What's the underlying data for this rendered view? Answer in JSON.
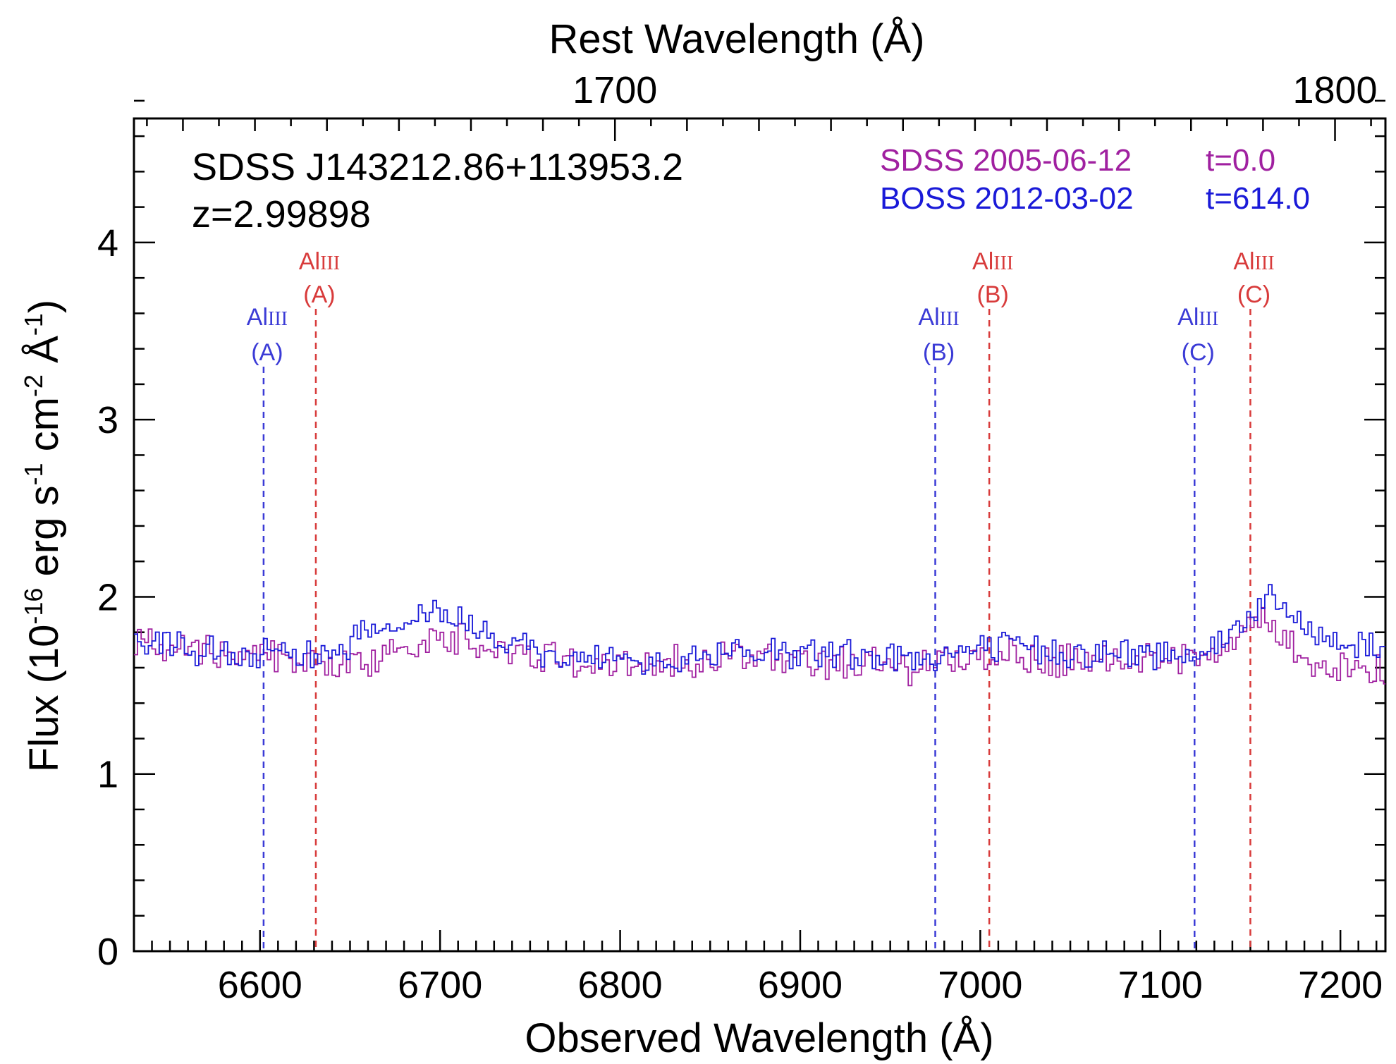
{
  "chart_data": {
    "type": "line",
    "object_name": "SDSS J143212.86+113953.2",
    "redshift_label": "z=2.99898",
    "xlabel": "Observed Wavelength (Å)",
    "x2label": "Rest Wavelength (Å)",
    "ylabel": "Flux (10",
    "ylabel_exp1": "-16",
    "ylabel_mid1": " erg s",
    "ylabel_exp2": "-1",
    "ylabel_mid2": " cm",
    "ylabel_exp3": "-2",
    "ylabel_mid3": " Å",
    "ylabel_exp4": "-1",
    "ylabel_end": ")",
    "xlim": [
      6530,
      7225
    ],
    "ylim": [
      0,
      4.7
    ],
    "rest_lim": [
      1633.2,
      1807.0
    ],
    "x_ticks": [
      6600,
      6700,
      6800,
      6900,
      7000,
      7100,
      7200
    ],
    "y_ticks": [
      0,
      1,
      2,
      3,
      4
    ],
    "top_ticks": [
      1700,
      1800
    ],
    "legend_placement": "top-right",
    "legend": [
      {
        "survey": "SDSS",
        "date": "2005-06-12",
        "epoch": "t=0.0",
        "color": "#a020a0"
      },
      {
        "survey": "BOSS",
        "date": "2012-03-02",
        "epoch": "t=614.0",
        "color": "#1a1ad8"
      }
    ],
    "series": [
      {
        "name": "SDSS",
        "color": "#a020a0",
        "x": [
          6530,
          6550,
          6570,
          6590,
          6610,
          6630,
          6650,
          6670,
          6690,
          6710,
          6730,
          6750,
          6770,
          6790,
          6810,
          6830,
          6850,
          6870,
          6890,
          6910,
          6930,
          6950,
          6960,
          6970,
          6990,
          7010,
          7030,
          7050,
          7070,
          7090,
          7110,
          7130,
          7145,
          7155,
          7165,
          7175,
          7185,
          7200,
          7225
        ],
        "y": [
          1.76,
          1.74,
          1.7,
          1.68,
          1.66,
          1.64,
          1.62,
          1.68,
          1.74,
          1.78,
          1.72,
          1.68,
          1.64,
          1.62,
          1.61,
          1.63,
          1.65,
          1.66,
          1.65,
          1.64,
          1.63,
          1.6,
          1.58,
          1.64,
          1.66,
          1.68,
          1.66,
          1.65,
          1.64,
          1.65,
          1.66,
          1.69,
          1.8,
          1.9,
          1.8,
          1.68,
          1.62,
          1.6,
          1.58
        ]
      },
      {
        "name": "BOSS",
        "color": "#1a1ad8",
        "x": [
          6530,
          6550,
          6570,
          6590,
          6610,
          6630,
          6650,
          6670,
          6690,
          6700,
          6710,
          6730,
          6750,
          6770,
          6790,
          6810,
          6830,
          6850,
          6870,
          6890,
          6910,
          6930,
          6950,
          6970,
          6990,
          7010,
          7030,
          7050,
          7070,
          7090,
          7110,
          7130,
          7145,
          7155,
          7165,
          7175,
          7185,
          7200,
          7225
        ],
        "y": [
          1.74,
          1.72,
          1.68,
          1.66,
          1.68,
          1.7,
          1.74,
          1.82,
          1.9,
          1.93,
          1.86,
          1.74,
          1.68,
          1.65,
          1.63,
          1.62,
          1.64,
          1.66,
          1.7,
          1.69,
          1.67,
          1.66,
          1.65,
          1.66,
          1.69,
          1.71,
          1.7,
          1.69,
          1.68,
          1.67,
          1.69,
          1.72,
          1.85,
          1.98,
          1.95,
          1.86,
          1.78,
          1.74,
          1.72
        ]
      }
    ],
    "markers": [
      {
        "element": "Al",
        "ion": "III",
        "label": "(A)",
        "x": 6602,
        "color": "#3b3bd6",
        "row": "low"
      },
      {
        "element": "Al",
        "ion": "III",
        "label": "(A)",
        "x": 6631,
        "color": "#d83b3b",
        "row": "high"
      },
      {
        "element": "Al",
        "ion": "III",
        "label": "(B)",
        "x": 6975,
        "color": "#3b3bd6",
        "row": "low"
      },
      {
        "element": "Al",
        "ion": "III",
        "label": "(B)",
        "x": 7005,
        "color": "#d83b3b",
        "row": "high"
      },
      {
        "element": "Al",
        "ion": "III",
        "label": "(C)",
        "x": 7119,
        "color": "#3b3bd6",
        "row": "low"
      },
      {
        "element": "Al",
        "ion": "III",
        "label": "(C)",
        "x": 7150,
        "color": "#d83b3b",
        "row": "high"
      }
    ]
  }
}
